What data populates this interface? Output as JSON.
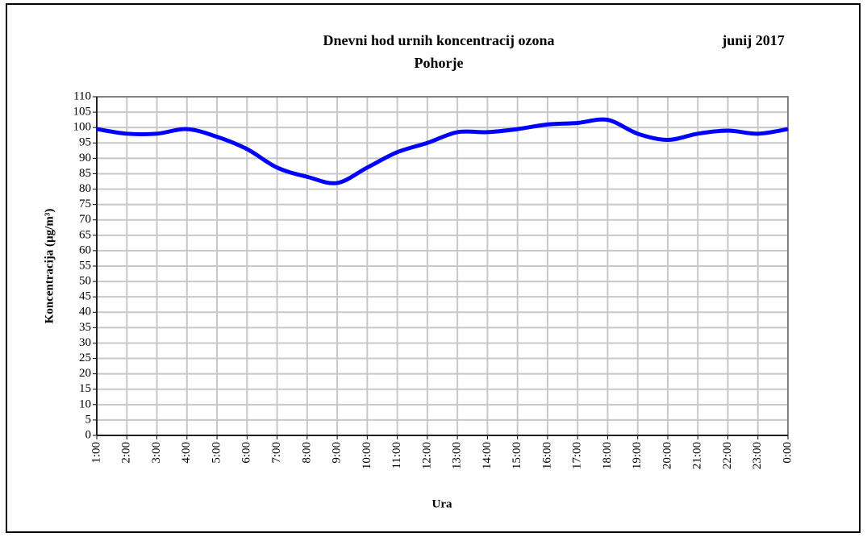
{
  "chart_data": {
    "type": "line",
    "title": "Dnevni hod urnih koncentracij ozona",
    "subtitle": "Pohorje",
    "period": "junij 2017",
    "x_label": "Ura",
    "y_label": "Koncentracija  (µg/m³)",
    "categories": [
      "1:00",
      "2:00",
      "3:00",
      "4:00",
      "5:00",
      "6:00",
      "7:00",
      "8:00",
      "9:00",
      "10:00",
      "11:00",
      "12:00",
      "13:00",
      "14:00",
      "15:00",
      "16:00",
      "17:00",
      "18:00",
      "19:00",
      "20:00",
      "21:00",
      "22:00",
      "23:00",
      "0:00"
    ],
    "series": [
      {
        "name": "Pohorje",
        "color": "#0000ff",
        "values": [
          99.5,
          98,
          98,
          99.5,
          97,
          93,
          87,
          84,
          82,
          87,
          92,
          95,
          98.5,
          98.5,
          99.5,
          101,
          101.5,
          102.5,
          98,
          96,
          98,
          99,
          98,
          99.5
        ]
      }
    ],
    "ylim": [
      0,
      110
    ],
    "yticks": [
      0,
      5,
      10,
      15,
      20,
      25,
      30,
      35,
      40,
      45,
      50,
      55,
      60,
      65,
      70,
      75,
      80,
      85,
      90,
      95,
      100,
      105,
      110
    ],
    "grid": true,
    "smooth": true
  }
}
